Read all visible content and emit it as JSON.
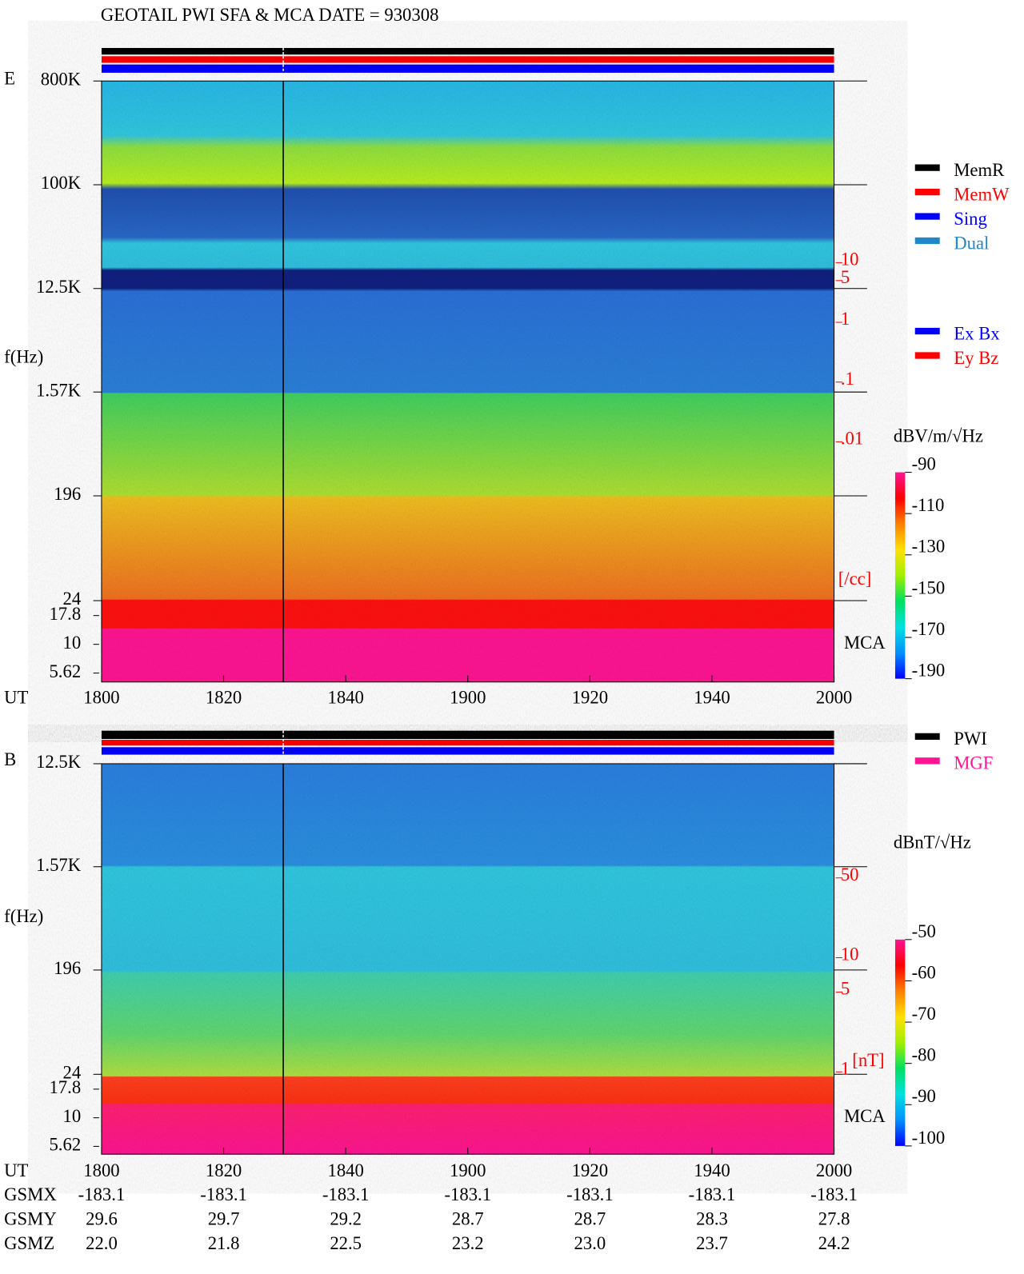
{
  "title": "GEOTAIL  PWI SFA & MCA   DATE = 930308",
  "chart_data": [
    {
      "type": "spectrogram",
      "panel_label": "E",
      "ylabel": "f(Hz)",
      "xlabel": "UT",
      "annotation": "MCA",
      "xlim": [
        0,
        120
      ],
      "xticks": [
        {
          "value": 0,
          "label": "1800"
        },
        {
          "value": 20,
          "label": "1820"
        },
        {
          "value": 40,
          "label": "1840"
        },
        {
          "value": 60,
          "label": "1900"
        },
        {
          "value": 80,
          "label": "1920"
        },
        {
          "value": 100,
          "label": "1940"
        },
        {
          "value": 120,
          "label": "2000"
        }
      ],
      "ylim": [
        4.7,
        800000
      ],
      "log_y": true,
      "yticks": [
        {
          "value": 800000,
          "label": "800K"
        },
        {
          "value": 100000,
          "label": "100K"
        },
        {
          "value": 12500,
          "label": "12.5K"
        },
        {
          "value": 1570,
          "label": "1.57K"
        },
        196,
        24,
        17.8,
        10,
        5.62
      ],
      "y2lim": [
        9.5e-07,
        11000
      ],
      "log_y2": true,
      "y2label": "[/cc]",
      "y2color": "#ff0000",
      "y2ticks": [
        10,
        5,
        1,
        {
          "value": 0.1,
          "label": ".1"
        },
        {
          "value": 0.01,
          "label": ".01"
        }
      ],
      "colorbar": {
        "label": "dBV/m/√Hz",
        "lim": [
          -190,
          -90
        ],
        "ticks": [
          -90,
          -110,
          -130,
          -150,
          -170,
          -190
        ],
        "colors": [
          "#0000ff",
          "#0090ff",
          "#00e0e0",
          "#00e060",
          "#a0f000",
          "#ffe000",
          "#ff8000",
          "#ff0000",
          "#ff1493"
        ]
      },
      "legends": [
        {
          "series": [
            {
              "name": "MemR",
              "color": "#000000"
            },
            {
              "name": "MemW",
              "color": "#ff0000"
            },
            {
              "name": "Sing",
              "color": "#0000ff"
            },
            {
              "name": "Dual",
              "color": "#2088c8"
            }
          ]
        },
        {
          "series": [
            {
              "name": "Ex Bx",
              "color": "#0000ff"
            },
            {
              "name": "Ey Bz",
              "color": "#ff0000"
            }
          ]
        }
      ]
    },
    {
      "type": "spectrogram",
      "panel_label": "B",
      "ylabel": "f(Hz)",
      "xlabel": "UT",
      "annotation": "MCA",
      "xlim": [
        0,
        120
      ],
      "xticks": [
        {
          "value": 0,
          "label": "1800"
        },
        {
          "value": 20,
          "label": "1820"
        },
        {
          "value": 40,
          "label": "1840"
        },
        {
          "value": 60,
          "label": "1900"
        },
        {
          "value": 80,
          "label": "1920"
        },
        {
          "value": 100,
          "label": "1940"
        },
        {
          "value": 120,
          "label": "2000"
        }
      ],
      "ylim": [
        4.8,
        12500
      ],
      "log_y": true,
      "yticks": [
        {
          "value": 12500,
          "label": "12.5K"
        },
        {
          "value": 1570,
          "label": "1.57K"
        },
        196,
        24,
        17.8,
        10,
        5.62
      ],
      "y2lim": [
        0.19,
        500
      ],
      "log_y2": true,
      "y2label": "[nT]",
      "y2color": "#ff0000",
      "y2ticks": [
        50,
        10,
        5,
        1
      ],
      "colorbar": {
        "label": "dBnT/√Hz",
        "lim": [
          -100,
          -50
        ],
        "ticks": [
          -50,
          -60,
          -70,
          -80,
          -90,
          -100
        ],
        "colors": [
          "#0000ff",
          "#0090ff",
          "#00e0e0",
          "#00e060",
          "#a0f000",
          "#ffe000",
          "#ff8000",
          "#ff0000",
          "#ff1493"
        ]
      },
      "legends": [
        {
          "series": [
            {
              "name": "PWI",
              "color": "#000000"
            },
            {
              "name": "MGF",
              "color": "#ff1493"
            }
          ]
        }
      ]
    }
  ],
  "orbit": {
    "rows": [
      {
        "label": "GSMX",
        "values": [
          "-183.1",
          "-183.1",
          "-183.1",
          "-183.1",
          "-183.1",
          "-183.1",
          "-183.1"
        ]
      },
      {
        "label": "GSMY",
        "values": [
          "29.6",
          "29.7",
          "29.2",
          "28.7",
          "28.7",
          "28.3",
          "27.8"
        ]
      },
      {
        "label": "GSMZ",
        "values": [
          "22.0",
          "21.8",
          "22.5",
          "23.2",
          "23.0",
          "23.7",
          "24.2"
        ]
      }
    ]
  }
}
